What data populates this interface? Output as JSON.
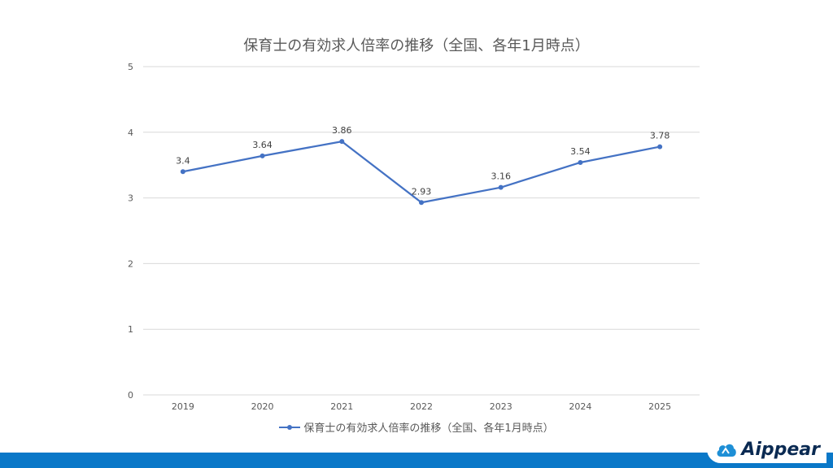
{
  "title": "保育士の有効求人倍率の推移（全国、各年1月時点）",
  "colors": {
    "series": "#4472c4",
    "grid": "#d9d9d9",
    "footer": "#0a78c8"
  },
  "logo": {
    "text": "Aippear",
    "icon": "cloud-icon"
  },
  "chart_data": {
    "type": "line",
    "title": "保育士の有効求人倍率の推移（全国、各年1月時点）",
    "categories": [
      "2019",
      "2020",
      "2021",
      "2022",
      "2023",
      "2024",
      "2025"
    ],
    "series": [
      {
        "name": "保育士の有効求人倍率の推移（全国、各年1月時点）",
        "values": [
          3.4,
          3.64,
          3.86,
          2.93,
          3.16,
          3.54,
          3.78
        ]
      }
    ],
    "data_labels": [
      "3.4",
      "3.64",
      "3.86",
      "2.93",
      "3.16",
      "3.54",
      "3.78"
    ],
    "yticks": [
      "0",
      "1",
      "2",
      "3",
      "4",
      "5"
    ],
    "ylim": [
      0,
      5
    ],
    "grid": true,
    "legend": "bottom"
  }
}
